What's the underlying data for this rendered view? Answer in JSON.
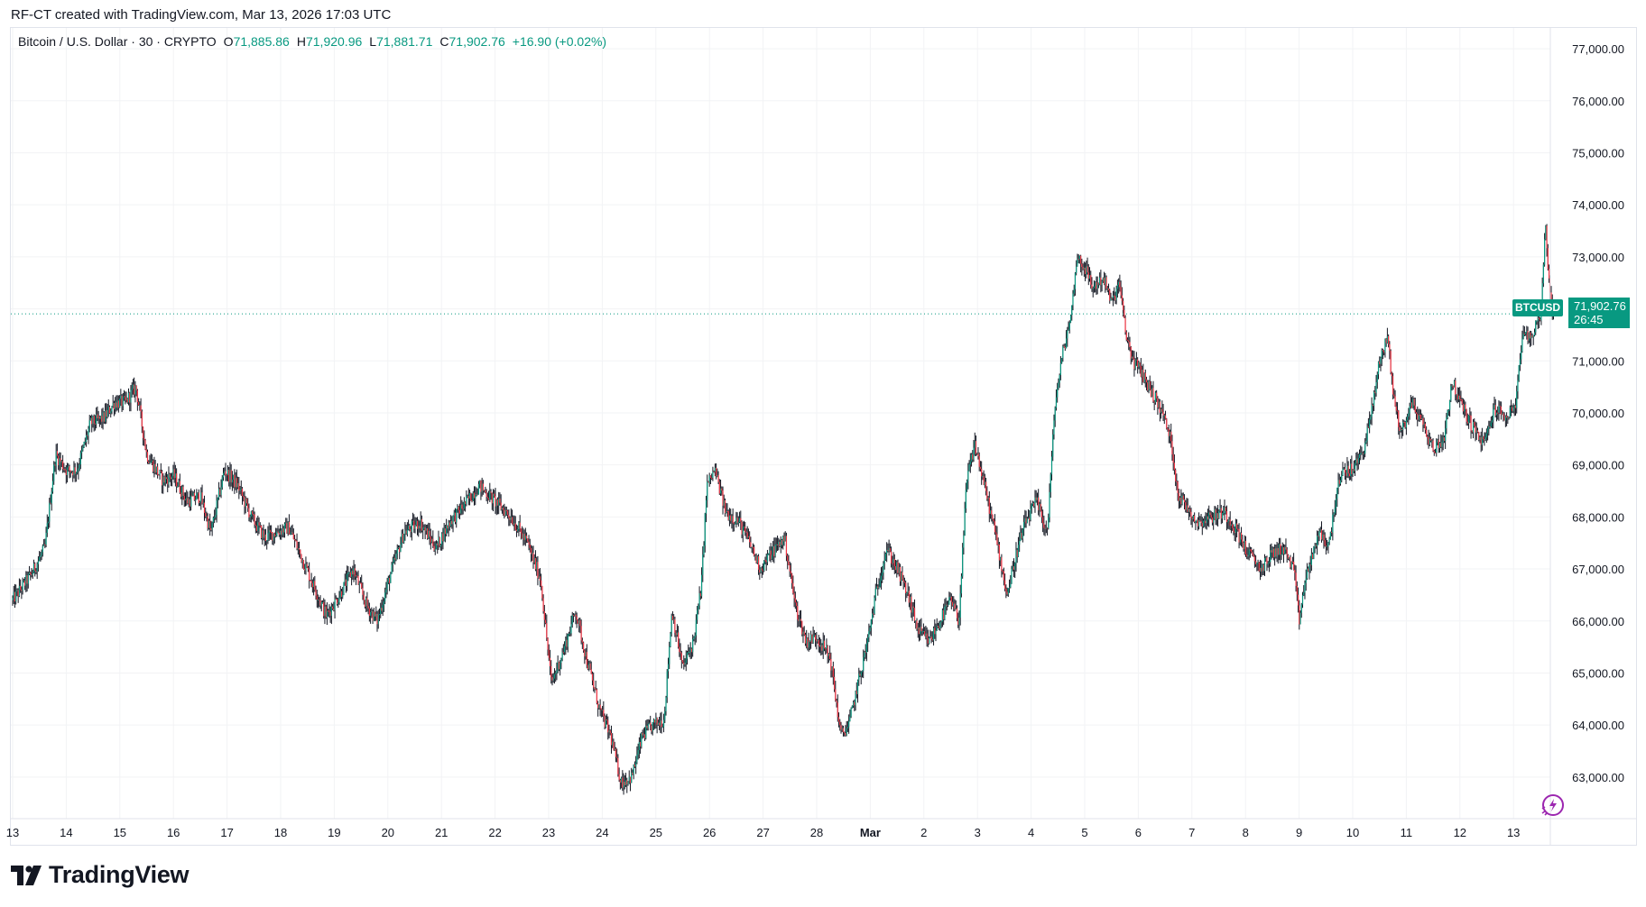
{
  "header_caption": "RF-CT created with TradingView.com, Mar 13, 2026 17:03 UTC",
  "legend": {
    "symbol_text": "Bitcoin / U.S. Dollar · 30 · CRYPTO",
    "o_label": "O",
    "o_value": "71,885.86",
    "h_label": "H",
    "h_value": "71,920.96",
    "l_label": "L",
    "l_value": "71,881.71",
    "c_label": "C",
    "c_value": "71,902.76",
    "change": "+16.90 (+0.02%)"
  },
  "price_tag": {
    "symbol": "BTCUSD",
    "price": "71,902.76",
    "countdown": "26:45"
  },
  "logo_text": "TradingView",
  "colors": {
    "up": "#089981",
    "down": "#F23645",
    "wick": "#131722",
    "grid": "#F2F3F5",
    "last_price_line": "#089981"
  },
  "chart_data": {
    "type": "candlestick",
    "interval": "30",
    "ylim": [
      62200,
      77400
    ],
    "y_ticks": [
      "63,000.00",
      "64,000.00",
      "65,000.00",
      "66,000.00",
      "67,000.00",
      "68,000.00",
      "69,000.00",
      "70,000.00",
      "71,000.00",
      "72,000.00",
      "73,000.00",
      "74,000.00",
      "75,000.00",
      "76,000.00",
      "77,000.00"
    ],
    "y_tick_values": [
      63000,
      64000,
      65000,
      66000,
      67000,
      68000,
      69000,
      70000,
      71000,
      72000,
      73000,
      74000,
      75000,
      76000,
      77000
    ],
    "x_ticks": [
      "13",
      "14",
      "15",
      "16",
      "17",
      "18",
      "19",
      "20",
      "21",
      "22",
      "23",
      "24",
      "25",
      "26",
      "27",
      "28",
      "Mar",
      "2",
      "3",
      "4",
      "5",
      "6",
      "7",
      "8",
      "9",
      "10",
      "11",
      "12",
      "13"
    ],
    "x_tick_days": [
      0,
      1,
      2,
      3,
      4,
      5,
      6,
      7,
      8,
      9,
      10,
      11,
      12,
      13,
      14,
      15,
      16,
      17,
      18,
      19,
      20,
      21,
      22,
      23,
      24,
      25,
      26,
      27,
      28
    ],
    "last_price": 71902.76,
    "series": [
      {
        "points": [
          [
            0.0,
            66400
          ],
          [
            0.35,
            66900
          ],
          [
            0.6,
            67400
          ],
          [
            0.8,
            69200
          ],
          [
            1.0,
            68900
          ],
          [
            1.2,
            68900
          ],
          [
            1.45,
            69800
          ],
          [
            1.7,
            69900
          ],
          [
            1.9,
            70200
          ],
          [
            2.1,
            70200
          ],
          [
            2.3,
            70500
          ],
          [
            2.5,
            69200
          ],
          [
            2.8,
            68700
          ],
          [
            3.0,
            68800
          ],
          [
            3.25,
            68300
          ],
          [
            3.5,
            68400
          ],
          [
            3.7,
            67700
          ],
          [
            3.95,
            68900
          ],
          [
            4.2,
            68600
          ],
          [
            4.45,
            68000
          ],
          [
            4.7,
            67600
          ],
          [
            4.9,
            67700
          ],
          [
            5.15,
            67800
          ],
          [
            5.4,
            67200
          ],
          [
            5.65,
            66600
          ],
          [
            5.85,
            66100
          ],
          [
            6.1,
            66500
          ],
          [
            6.35,
            67000
          ],
          [
            6.6,
            66300
          ],
          [
            6.8,
            66000
          ],
          [
            7.05,
            66900
          ],
          [
            7.3,
            67700
          ],
          [
            7.6,
            67900
          ],
          [
            7.9,
            67400
          ],
          [
            8.15,
            67900
          ],
          [
            8.4,
            68200
          ],
          [
            8.7,
            68600
          ],
          [
            9.0,
            68300
          ],
          [
            9.3,
            68000
          ],
          [
            9.6,
            67500
          ],
          [
            9.85,
            66800
          ],
          [
            10.05,
            64800
          ],
          [
            10.3,
            65500
          ],
          [
            10.5,
            66200
          ],
          [
            10.7,
            65300
          ],
          [
            10.95,
            64300
          ],
          [
            11.15,
            63800
          ],
          [
            11.35,
            62900
          ],
          [
            11.55,
            63000
          ],
          [
            11.75,
            63800
          ],
          [
            11.95,
            64000
          ],
          [
            12.15,
            64100
          ],
          [
            12.3,
            66200
          ],
          [
            12.5,
            65100
          ],
          [
            12.7,
            65600
          ],
          [
            12.85,
            66700
          ],
          [
            12.95,
            68600
          ],
          [
            13.1,
            68900
          ],
          [
            13.3,
            68100
          ],
          [
            13.55,
            67900
          ],
          [
            13.75,
            67500
          ],
          [
            13.95,
            67000
          ],
          [
            14.15,
            67300
          ],
          [
            14.4,
            67600
          ],
          [
            14.6,
            66300
          ],
          [
            14.8,
            65600
          ],
          [
            15.0,
            65700
          ],
          [
            15.25,
            65300
          ],
          [
            15.45,
            63800
          ],
          [
            15.6,
            64000
          ],
          [
            15.75,
            64700
          ],
          [
            15.95,
            65600
          ],
          [
            16.1,
            66500
          ],
          [
            16.3,
            67400
          ],
          [
            16.5,
            67000
          ],
          [
            16.7,
            66500
          ],
          [
            16.9,
            65800
          ],
          [
            17.1,
            65600
          ],
          [
            17.3,
            66000
          ],
          [
            17.5,
            66400
          ],
          [
            17.65,
            66000
          ],
          [
            17.8,
            68700
          ],
          [
            17.95,
            69400
          ],
          [
            18.15,
            68500
          ],
          [
            18.35,
            67600
          ],
          [
            18.55,
            66500
          ],
          [
            18.75,
            67400
          ],
          [
            18.9,
            67900
          ],
          [
            19.1,
            68300
          ],
          [
            19.3,
            67700
          ],
          [
            19.45,
            70200
          ],
          [
            19.6,
            71200
          ],
          [
            19.75,
            71900
          ],
          [
            19.85,
            73000
          ],
          [
            20.0,
            72800
          ],
          [
            20.15,
            72400
          ],
          [
            20.35,
            72600
          ],
          [
            20.5,
            72100
          ],
          [
            20.65,
            72500
          ],
          [
            20.75,
            71600
          ],
          [
            20.9,
            71000
          ],
          [
            21.05,
            70800
          ],
          [
            21.2,
            70500
          ],
          [
            21.45,
            70000
          ],
          [
            21.6,
            69500
          ],
          [
            21.75,
            68400
          ],
          [
            21.9,
            68200
          ],
          [
            22.1,
            67900
          ],
          [
            22.35,
            68000
          ],
          [
            22.6,
            68100
          ],
          [
            22.8,
            67800
          ],
          [
            23.05,
            67300
          ],
          [
            23.3,
            67000
          ],
          [
            23.5,
            67300
          ],
          [
            23.7,
            67400
          ],
          [
            23.9,
            67000
          ],
          [
            24.0,
            66000
          ],
          [
            24.1,
            66700
          ],
          [
            24.25,
            67300
          ],
          [
            24.4,
            67700
          ],
          [
            24.55,
            67400
          ],
          [
            24.7,
            68500
          ],
          [
            24.85,
            68900
          ],
          [
            25.0,
            68900
          ],
          [
            25.2,
            69300
          ],
          [
            25.35,
            70000
          ],
          [
            25.5,
            71000
          ],
          [
            25.65,
            71500
          ],
          [
            25.75,
            70400
          ],
          [
            25.9,
            69600
          ],
          [
            26.1,
            70200
          ],
          [
            26.3,
            69800
          ],
          [
            26.5,
            69300
          ],
          [
            26.7,
            69500
          ],
          [
            26.85,
            70600
          ],
          [
            27.05,
            70100
          ],
          [
            27.25,
            69700
          ],
          [
            27.45,
            69400
          ],
          [
            27.65,
            70100
          ],
          [
            27.85,
            69900
          ],
          [
            28.05,
            70200
          ],
          [
            28.15,
            71400
          ],
          [
            28.35,
            71500
          ],
          [
            28.5,
            71900
          ],
          [
            28.6,
            73600
          ],
          [
            28.68,
            72200
          ],
          [
            28.75,
            71900
          ]
        ]
      }
    ]
  }
}
